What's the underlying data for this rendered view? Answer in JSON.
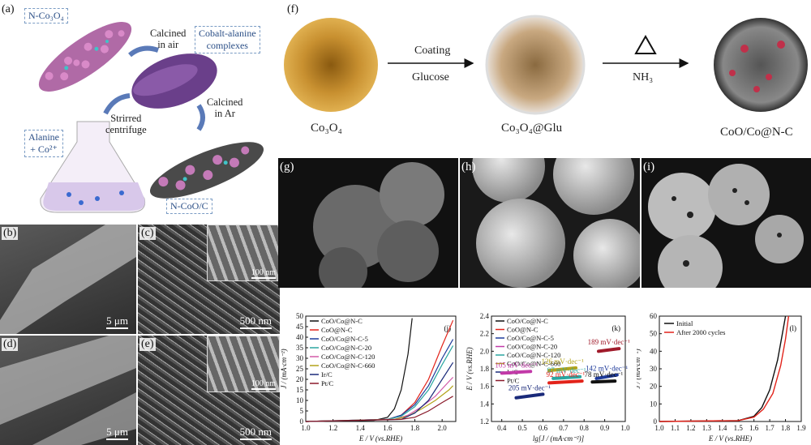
{
  "panel_a": {
    "label": "(a)",
    "n_co3o4": "N-Co₃O₄",
    "calcined_air": "Calcined\nin air",
    "complexes": "Cobalt-alanine\ncomplexes",
    "calcined_ar": "Calcined\nin Ar",
    "stirred": "Strirred\ncentrifuge",
    "alanine": "Alanine\n+ Co²⁺",
    "n_coo_c": "N-CoO/C"
  },
  "panel_b": {
    "label": "(b)",
    "scale": "5 μm"
  },
  "panel_c": {
    "label": "(c)",
    "scale": "500 nm",
    "inset_scale": "100 nm"
  },
  "panel_d": {
    "label": "(d)",
    "scale": "5 μm"
  },
  "panel_e": {
    "label": "(e)",
    "scale": "500 nm",
    "inset_scale": "100 nm"
  },
  "panel_f": {
    "label": "(f)",
    "coating": "Coating",
    "glucose": "Glucose",
    "nh3": "NH₃",
    "co3o4": "Co₃O₄",
    "co3o4_glu": "Co₃O₄@Glu",
    "coo_co_nc": "CoO/Co@N-C"
  },
  "panel_g": {
    "label": "(g)"
  },
  "panel_h": {
    "label": "(h)"
  },
  "panel_i": {
    "label": "(i)"
  },
  "chart_data": [
    {
      "type": "line",
      "panel": "(j)",
      "xlabel": "E / V (vs.RHE)",
      "ylabel": "J / (mA·cm⁻²)",
      "xlim": [
        1.0,
        2.1
      ],
      "ylim": [
        0,
        50
      ],
      "xticks": [
        "1.0",
        "1.2",
        "1.4",
        "1.6",
        "1.8",
        "2.0"
      ],
      "yticks": [
        "0",
        "5",
        "10",
        "15",
        "20",
        "25",
        "30",
        "35",
        "40",
        "45",
        "50"
      ],
      "series": [
        {
          "name": "CoO/Co@N-C",
          "color": "#111111",
          "x": [
            1.0,
            1.5,
            1.6,
            1.65,
            1.7,
            1.75,
            1.78
          ],
          "y": [
            0,
            0.5,
            2,
            6,
            15,
            32,
            49
          ]
        },
        {
          "name": "CoO@N-C",
          "color": "#e2231a",
          "x": [
            1.0,
            1.6,
            1.7,
            1.8,
            1.9,
            2.0,
            2.08
          ],
          "y": [
            0,
            1,
            3,
            9,
            20,
            36,
            48
          ]
        },
        {
          "name": "CoO/Co@N-C-5",
          "color": "#1e3a9a",
          "x": [
            1.0,
            1.6,
            1.7,
            1.8,
            1.9,
            2.0,
            2.08
          ],
          "y": [
            0,
            1,
            3,
            8,
            17,
            30,
            39
          ]
        },
        {
          "name": "CoO/Co@N-C-20",
          "color": "#2aa6a0",
          "x": [
            1.0,
            1.6,
            1.7,
            1.8,
            1.9,
            2.0,
            2.08
          ],
          "y": [
            0,
            1,
            2.5,
            7,
            15,
            27,
            36
          ]
        },
        {
          "name": "CoO/Co@N-C-120",
          "color": "#d25aa8",
          "x": [
            1.0,
            1.65,
            1.75,
            1.85,
            1.95,
            2.05,
            2.08
          ],
          "y": [
            0,
            1,
            3,
            7,
            12,
            19,
            21
          ]
        },
        {
          "name": "CoO/Co@N-C-660",
          "color": "#b3a31a",
          "x": [
            1.0,
            1.65,
            1.75,
            1.85,
            1.95,
            2.05,
            2.08
          ],
          "y": [
            0,
            1,
            2.5,
            6,
            10,
            15,
            17
          ]
        },
        {
          "name": "Ir/C",
          "color": "#1a2a7a",
          "x": [
            1.0,
            1.7,
            1.8,
            1.9,
            2.0,
            2.08
          ],
          "y": [
            0,
            1,
            4,
            10,
            20,
            28
          ]
        },
        {
          "name": "Pt/C",
          "color": "#8a1a2a",
          "x": [
            1.0,
            1.7,
            1.8,
            1.9,
            2.0,
            2.08
          ],
          "y": [
            0,
            1,
            2,
            5,
            9,
            12
          ]
        }
      ],
      "annotation": "(j)"
    },
    {
      "type": "scatter",
      "panel": "(k)",
      "xlabel": "lg[J / (mA·cm⁻²)]",
      "ylabel": "E / V (vs.RHE)",
      "xlim": [
        0.35,
        1.0
      ],
      "ylim": [
        1.2,
        2.4
      ],
      "xticks": [
        "0.4",
        "0.5",
        "0.6",
        "0.7",
        "0.8",
        "0.9",
        "1.0"
      ],
      "yticks": [
        "1.2",
        "1.4",
        "1.6",
        "1.8",
        "2.0",
        "2.2",
        "2.4"
      ],
      "legend": [
        "CoO/Co@N-C",
        "CoO@N-C",
        "CoO/Co@N-C-5",
        "CoO/Co@N-C-20",
        "CoO/Co@N-C-120",
        "CoO/Co@N-C-660",
        "Ir/C",
        "Pt/C"
      ],
      "tafel_lines": [
        {
          "slope": "189 mV·dec⁻¹",
          "color": "#a01a2a",
          "x": [
            0.87,
            0.97
          ],
          "y": [
            2.0,
            2.03
          ]
        },
        {
          "slope": "126 mV·dec⁻¹",
          "color": "#b3a31a",
          "x": [
            0.63,
            0.76
          ],
          "y": [
            1.78,
            1.81
          ]
        },
        {
          "slope": "105 mV·dec⁻¹",
          "color": "#c23aa8",
          "x": [
            0.4,
            0.54
          ],
          "y": [
            1.75,
            1.77
          ]
        },
        {
          "slope": "97 mV·dec⁻¹",
          "color": "#2aa6a0",
          "x": [
            0.65,
            0.78
          ],
          "y": [
            1.69,
            1.71
          ]
        },
        {
          "slope": "142 mV·dec⁻¹",
          "color": "#1e3a9a",
          "x": [
            0.86,
            0.96
          ],
          "y": [
            1.69,
            1.73
          ]
        },
        {
          "slope": "92 mV·dec⁻¹",
          "color": "#e2231a",
          "x": [
            0.63,
            0.79
          ],
          "y": [
            1.64,
            1.66
          ]
        },
        {
          "slope": "78 mV·dec⁻¹",
          "color": "#111111",
          "x": [
            0.84,
            0.95
          ],
          "y": [
            1.65,
            1.66
          ]
        },
        {
          "slope": "205 mV·dec⁻¹",
          "color": "#1a2a7a",
          "x": [
            0.47,
            0.6
          ],
          "y": [
            1.47,
            1.51
          ]
        }
      ],
      "annotation": "(k)"
    },
    {
      "type": "line",
      "panel": "(l)",
      "xlabel": "E / V (vs.RHE)",
      "ylabel": "J / (mA·cm⁻²)",
      "xlim": [
        1.0,
        1.9
      ],
      "ylim": [
        0,
        60
      ],
      "xticks": [
        "1.0",
        "1.1",
        "1.2",
        "1.3",
        "1.4",
        "1.5",
        "1.6",
        "1.7",
        "1.8",
        "1.9"
      ],
      "yticks": [
        "0",
        "10",
        "20",
        "30",
        "40",
        "50",
        "60"
      ],
      "series": [
        {
          "name": "Initial",
          "color": "#111111",
          "x": [
            1.0,
            1.5,
            1.6,
            1.65,
            1.7,
            1.75,
            1.78,
            1.8
          ],
          "y": [
            0,
            0.5,
            3,
            8,
            18,
            35,
            50,
            60
          ]
        },
        {
          "name": "After 2000 cycles",
          "color": "#e2231a",
          "x": [
            1.0,
            1.5,
            1.6,
            1.66,
            1.72,
            1.77,
            1.8,
            1.82
          ],
          "y": [
            0,
            0.5,
            2.5,
            7,
            16,
            32,
            47,
            60
          ]
        }
      ],
      "annotation": "(l)"
    }
  ]
}
